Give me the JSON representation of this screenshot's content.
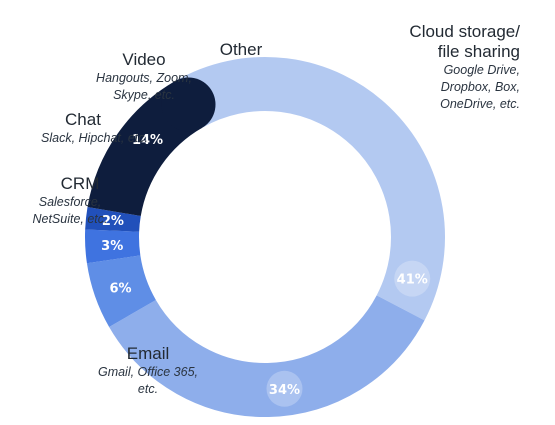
{
  "chart_data": {
    "type": "pie",
    "categories": [
      "Cloud storage/\nfile sharing",
      "Email",
      "CRM",
      "Chat",
      "Video",
      "Other"
    ],
    "values": [
      41,
      34,
      6,
      3,
      2,
      14
    ],
    "value_labels": [
      "41%",
      "34%",
      "6%",
      "3%",
      "2%",
      "14%"
    ],
    "colors": [
      "#b3c9f1",
      "#8eaeeb",
      "#5f8ee6",
      "#3f73e0",
      "#2150ba",
      "#0e1d3d"
    ],
    "labels": [
      {
        "name": "Cloud storage/\nfile sharing",
        "examples": "Google Drive,\nDropbox, Box,\nOneDrive, etc."
      },
      {
        "name": "Email",
        "examples": "Gmail, Office 365,\netc."
      },
      {
        "name": "CRM",
        "examples": "Salesforce,\nNetSuite, etc."
      },
      {
        "name": "Chat",
        "examples": "Slack, Hipchat, etc."
      },
      {
        "name": "Video",
        "examples": "Hangouts, Zoom,\nSkype, etc."
      },
      {
        "name": "Other",
        "examples": ""
      }
    ]
  }
}
